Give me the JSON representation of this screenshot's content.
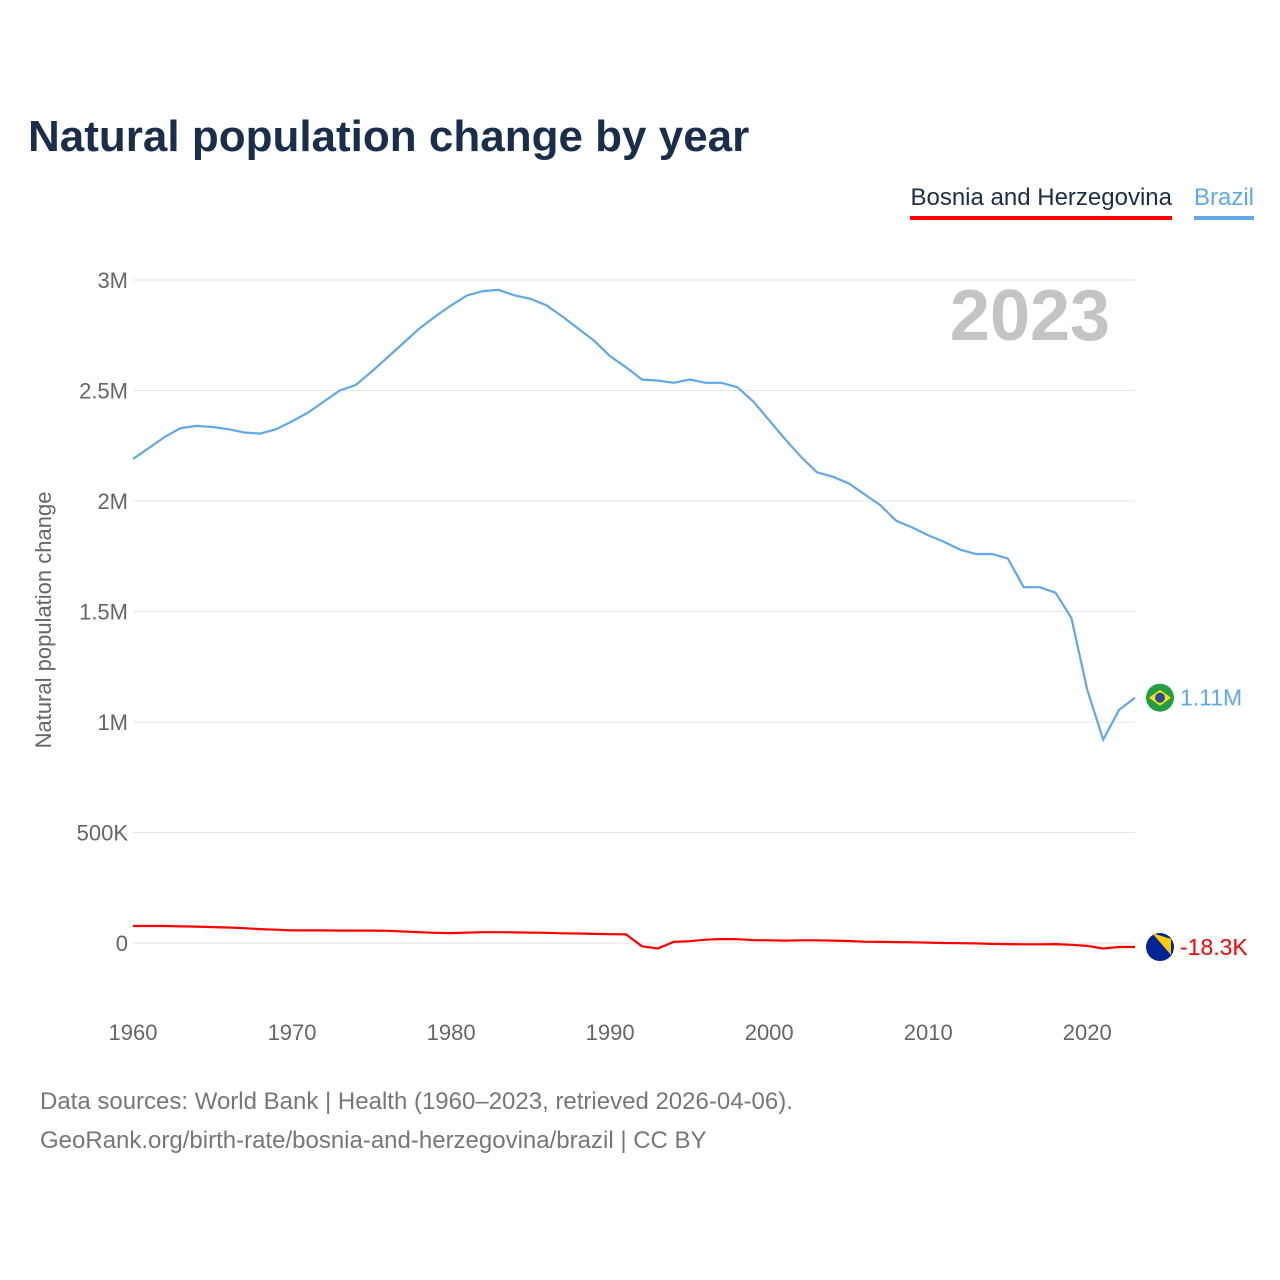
{
  "title": "Natural population change by year",
  "legend": [
    "Bosnia and Herzegovina",
    "Brazil"
  ],
  "year_label": "2023",
  "footer": {
    "line1": "Data sources: World Bank | Health (1960–2023, retrieved 2026-04-06).",
    "line2": "GeoRank.org/birth-rate/bosnia-and-herzegovina/brazil | CC BY"
  },
  "chart_data": {
    "type": "line",
    "title": "Natural population change by year",
    "xlabel": "",
    "ylabel": "Natural population change",
    "xlim": [
      1960,
      2023
    ],
    "ylim": [
      -200000,
      3000000
    ],
    "xticks": [
      1960,
      1970,
      1980,
      1990,
      2000,
      2010,
      2020
    ],
    "xtick_labels": [
      "1960",
      "1970",
      "1980",
      "1990",
      "2000",
      "2010",
      "2020"
    ],
    "yticks": [
      0,
      500000,
      1000000,
      1500000,
      2000000,
      2500000,
      3000000
    ],
    "ytick_labels": [
      "0",
      "500K",
      "1M",
      "1.5M",
      "2M",
      "2.5M",
      "3M"
    ],
    "grid": true,
    "legend_position": "top-right",
    "x": [
      1960,
      1961,
      1962,
      1963,
      1964,
      1965,
      1966,
      1967,
      1968,
      1969,
      1970,
      1971,
      1972,
      1973,
      1974,
      1975,
      1976,
      1977,
      1978,
      1979,
      1980,
      1981,
      1982,
      1983,
      1984,
      1985,
      1986,
      1987,
      1988,
      1989,
      1990,
      1991,
      1992,
      1993,
      1994,
      1995,
      1996,
      1997,
      1998,
      1999,
      2000,
      2001,
      2002,
      2003,
      2004,
      2005,
      2006,
      2007,
      2008,
      2009,
      2010,
      2011,
      2012,
      2013,
      2014,
      2015,
      2016,
      2017,
      2018,
      2019,
      2020,
      2021,
      2022,
      2023
    ],
    "series": [
      {
        "name": "Bosnia and Herzegovina",
        "color": "#ff0000",
        "end_label": "-18.3K",
        "values": [
          77000,
          77000,
          77000,
          75000,
          74000,
          72000,
          70000,
          67000,
          63000,
          60000,
          57000,
          57000,
          57000,
          56000,
          56000,
          56000,
          55000,
          52000,
          49000,
          46000,
          45000,
          47000,
          49000,
          49000,
          48000,
          47000,
          46000,
          44000,
          43000,
          41000,
          40000,
          39000,
          -15000,
          -25000,
          5000,
          8000,
          15000,
          18000,
          17000,
          13000,
          12000,
          11000,
          12000,
          12000,
          11000,
          9000,
          6000,
          5000,
          4000,
          3000,
          2000,
          0,
          -1000,
          -2000,
          -4000,
          -5000,
          -6000,
          -6000,
          -5000,
          -8000,
          -13000,
          -25000,
          -18000,
          -18300
        ]
      },
      {
        "name": "Brazil",
        "color": "#5fa8ec",
        "end_label": "1.11M",
        "values": [
          2190000,
          2240000,
          2290000,
          2330000,
          2340000,
          2335000,
          2325000,
          2310000,
          2305000,
          2325000,
          2360000,
          2400000,
          2450000,
          2500000,
          2525000,
          2585000,
          2650000,
          2715000,
          2780000,
          2835000,
          2885000,
          2930000,
          2950000,
          2955000,
          2930000,
          2915000,
          2885000,
          2835000,
          2780000,
          2725000,
          2655000,
          2605000,
          2550000,
          2545000,
          2535000,
          2550000,
          2535000,
          2535000,
          2515000,
          2450000,
          2365000,
          2280000,
          2200000,
          2130000,
          2110000,
          2080000,
          2030000,
          1980000,
          1910000,
          1880000,
          1845000,
          1815000,
          1780000,
          1760000,
          1760000,
          1740000,
          1610000,
          1610000,
          1585000,
          1470000,
          1145000,
          920000,
          1055000,
          1110000
        ]
      }
    ]
  }
}
